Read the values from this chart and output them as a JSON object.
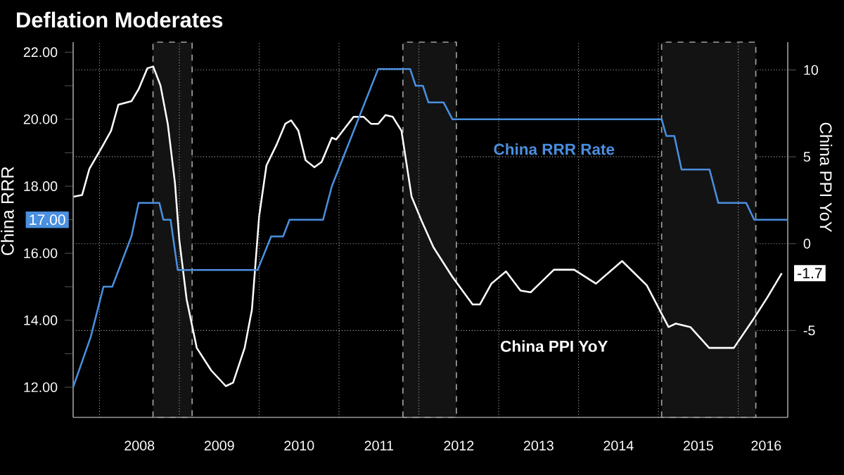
{
  "chart_data": {
    "type": "line",
    "title": "Deflation Moderates",
    "ylabel": "China RRR",
    "y2label": "China PPI YoY",
    "xlim": [
      2007.67,
      2016.62
    ],
    "xticks": [
      {
        "value": 2008,
        "label": null
      },
      {
        "value": 2008.5,
        "label": "2008"
      },
      {
        "value": 2009,
        "label": null
      },
      {
        "value": 2009.5,
        "label": "2009"
      },
      {
        "value": 2010,
        "label": null
      },
      {
        "value": 2010.5,
        "label": "2010"
      },
      {
        "value": 2011,
        "label": null
      },
      {
        "value": 2011.5,
        "label": "2011"
      },
      {
        "value": 2012,
        "label": null
      },
      {
        "value": 2012.5,
        "label": "2012"
      },
      {
        "value": 2013,
        "label": null
      },
      {
        "value": 2013.5,
        "label": "2013"
      },
      {
        "value": 2014,
        "label": null
      },
      {
        "value": 2014.5,
        "label": "2014"
      },
      {
        "value": 2015,
        "label": null
      },
      {
        "value": 2015.5,
        "label": "2015"
      },
      {
        "value": 2016,
        "label": null
      },
      {
        "value": 2016.35,
        "label": "2016"
      }
    ],
    "ylim": [
      11.1,
      22.3
    ],
    "yticks": [
      {
        "value": 12,
        "label": "12.00"
      },
      {
        "value": 13,
        "label": null
      },
      {
        "value": 14,
        "label": "14.00"
      },
      {
        "value": 15,
        "label": null
      },
      {
        "value": 16,
        "label": "16.00"
      },
      {
        "value": 17,
        "label": null
      },
      {
        "value": 18,
        "label": "18.00"
      },
      {
        "value": 19,
        "label": null
      },
      {
        "value": 20,
        "label": "20.00"
      },
      {
        "value": 21,
        "label": null
      },
      {
        "value": 22,
        "label": "22.00"
      }
    ],
    "y2lim": [
      -10,
      11.6
    ],
    "y2ticks": [
      -5,
      0,
      5,
      10
    ],
    "annotations": [
      "17.00"
    ],
    "grid": true,
    "legend": false,
    "marker": "none",
    "line_style": "solid",
    "bands": [
      {
        "axis": "x",
        "from": 2008.67,
        "to": 2009.16,
        "color": "#a0a0a0"
      },
      {
        "axis": "x",
        "from": 2011.8,
        "to": 2012.47,
        "color": "#a0a0a0"
      },
      {
        "axis": "x",
        "from": 2015.04,
        "to": 2016.22,
        "color": "#a0a0a0"
      }
    ],
    "series": [
      {
        "name": "China RRR Rate",
        "color": "#4a8fe0",
        "axis": "y",
        "x": [
          2007.67,
          2007.89,
          2008.05,
          2008.16,
          2008.4,
          2008.49,
          2008.75,
          2008.8,
          2008.89,
          2008.98,
          2009.98,
          2010.15,
          2010.3,
          2010.38,
          2010.8,
          2010.91,
          2011.49,
          2011.89,
          2011.96,
          2012.05,
          2012.12,
          2012.31,
          2012.42,
          2015.04,
          2015.1,
          2015.2,
          2015.29,
          2015.64,
          2015.75,
          2016.1,
          2016.2,
          2016.62
        ],
        "values": [
          12.0,
          13.5,
          15.0,
          15.0,
          16.5,
          17.5,
          17.5,
          17.0,
          17.0,
          15.5,
          15.5,
          16.5,
          16.5,
          17.0,
          17.0,
          18.0,
          21.5,
          21.5,
          21.0,
          21.0,
          20.5,
          20.5,
          20.0,
          20.0,
          19.5,
          19.5,
          18.5,
          18.5,
          17.5,
          17.5,
          17.0,
          17.0
        ],
        "value_labels": [
          null,
          null,
          null,
          null,
          null,
          null,
          null,
          null,
          null,
          null,
          null,
          null,
          null,
          null,
          null,
          null,
          null,
          null,
          null,
          null,
          null,
          null,
          null,
          null,
          null,
          null,
          null,
          null,
          null,
          null,
          null,
          null
        ]
      },
      {
        "name": "China PPI YoY",
        "color": "#ffffff",
        "axis": "y2",
        "x": [
          2007.673,
          2007.782,
          2007.873,
          2008.036,
          2008.145,
          2008.236,
          2008.4,
          2008.491,
          2008.6,
          2008.673,
          2008.764,
          2008.855,
          2008.945,
          2009.0,
          2009.091,
          2009.218,
          2009.4,
          2009.582,
          2009.673,
          2009.818,
          2009.909,
          2010.0,
          2010.091,
          2010.218,
          2010.327,
          2010.4,
          2010.491,
          2010.582,
          2010.691,
          2010.782,
          2010.909,
          2010.964,
          2011.182,
          2011.309,
          2011.4,
          2011.491,
          2011.582,
          2011.673,
          2011.782,
          2011.909,
          2012.036,
          2012.182,
          2012.418,
          2012.673,
          2012.764,
          2012.909,
          2013.091,
          2013.273,
          2013.4,
          2013.691,
          2013.945,
          2014.218,
          2014.545,
          2014.855,
          2015.127,
          2015.218,
          2015.4,
          2015.636,
          2015.945,
          2016.182,
          2016.364,
          2016.545
        ],
        "values": [
          2.7,
          2.8,
          4.3,
          5.6,
          6.5,
          8.0,
          8.2,
          8.9,
          10.1,
          10.2,
          9.1,
          6.9,
          3.5,
          0.2,
          -3.2,
          -6.0,
          -7.3,
          -8.2,
          -8.0,
          -6.0,
          -3.8,
          1.6,
          4.5,
          5.7,
          6.9,
          7.1,
          6.5,
          4.8,
          4.4,
          4.7,
          6.1,
          6.0,
          7.3,
          7.3,
          6.9,
          6.9,
          7.4,
          7.3,
          6.5,
          2.7,
          1.3,
          -0.2,
          -1.9,
          -3.5,
          -3.5,
          -2.3,
          -1.6,
          -2.7,
          -2.8,
          -1.5,
          -1.5,
          -2.3,
          -1.0,
          -2.4,
          -4.8,
          -4.6,
          -4.8,
          -6.0,
          -6.0,
          -4.4,
          -3.1,
          -1.7
        ],
        "value_labels": [
          null,
          null,
          null,
          null,
          null,
          null,
          null,
          null,
          null,
          null,
          null,
          null,
          null,
          null,
          null,
          null,
          null,
          null,
          null,
          null,
          null,
          null,
          null,
          null,
          null,
          null,
          null,
          null,
          null,
          null,
          null,
          null,
          null,
          null,
          null,
          null,
          null,
          null,
          null,
          null,
          null,
          null,
          null,
          null,
          null,
          null,
          null,
          null,
          null,
          null,
          null,
          null,
          null,
          null,
          null,
          null,
          null,
          null,
          null,
          null,
          null,
          "-1.7"
        ]
      }
    ]
  }
}
